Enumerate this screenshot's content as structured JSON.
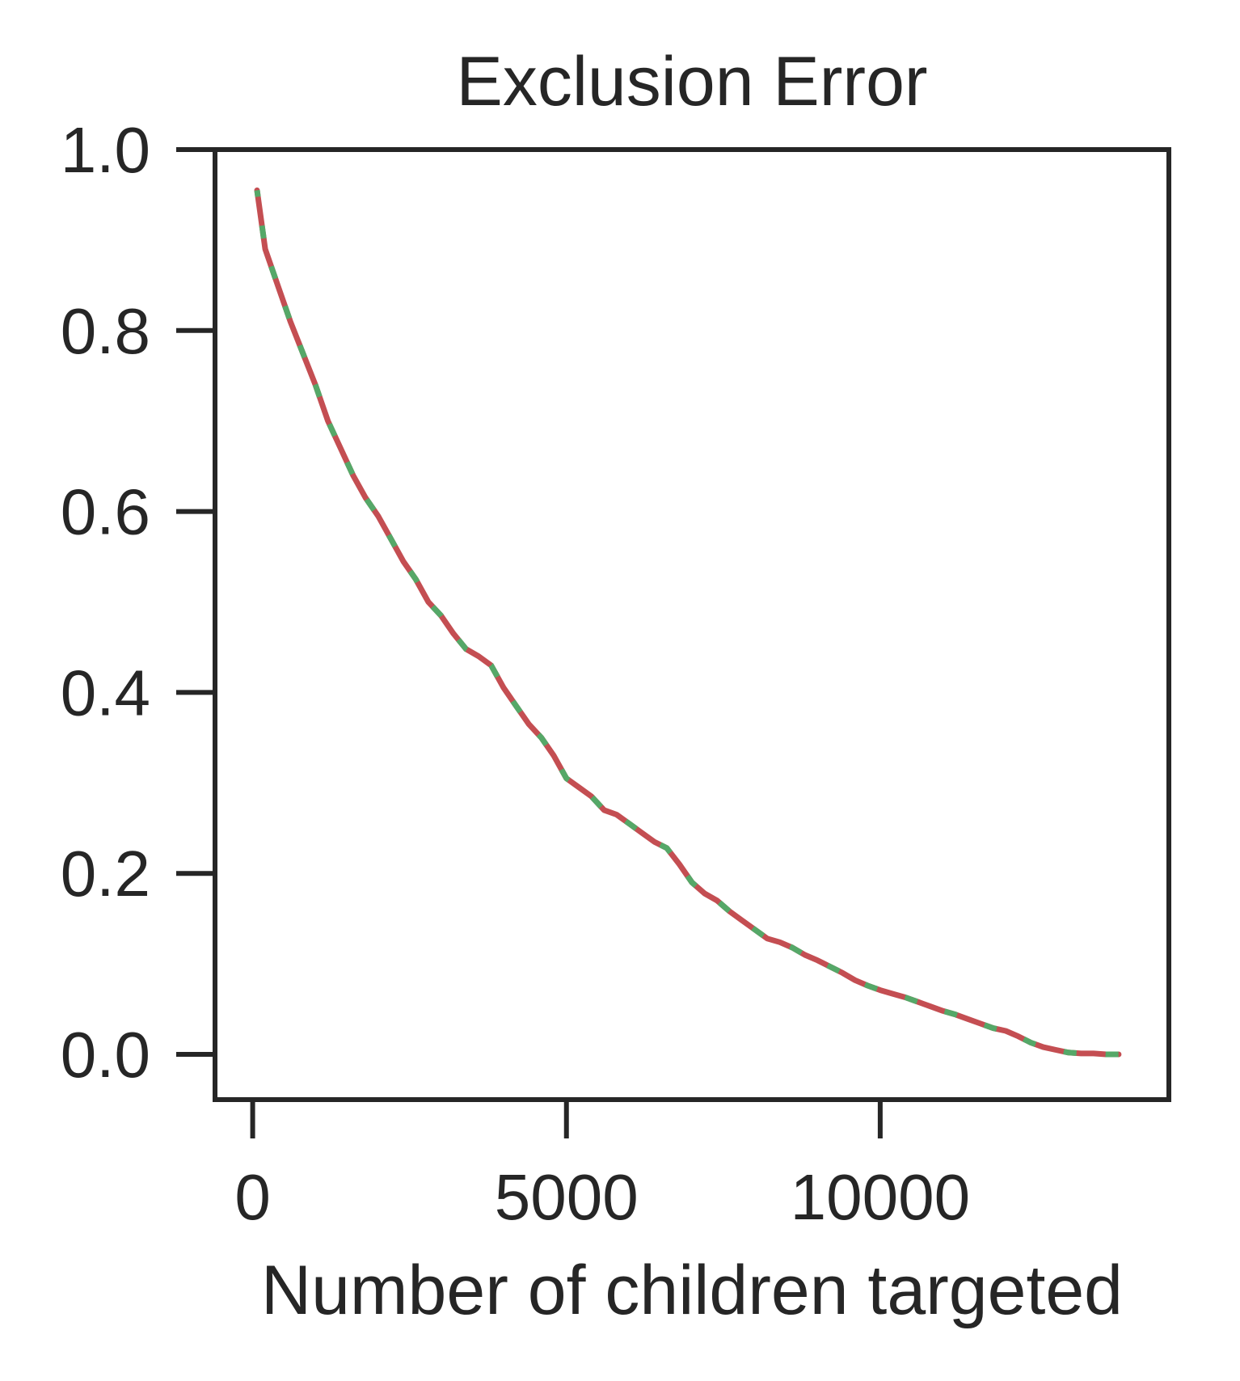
{
  "chart_data": {
    "type": "line",
    "title": "Exclusion Error",
    "xlabel": "Number of children targeted",
    "ylabel": "",
    "xlim": [
      -600,
      14600
    ],
    "ylim": [
      -0.05,
      1.0
    ],
    "xticks": [
      0,
      5000,
      10000
    ],
    "xtick_labels": [
      "0",
      "5000",
      "10000"
    ],
    "yticks": [
      0.0,
      0.2,
      0.4,
      0.6,
      0.8,
      1.0
    ],
    "ytick_labels": [
      "0.0",
      "0.2",
      "0.4",
      "0.6",
      "0.8",
      "1.0"
    ],
    "grid": false,
    "legend": "none",
    "line_style": "dashed",
    "colors": {
      "primary": "#c44e52",
      "secondary": "#55a868",
      "axis": "#262626"
    },
    "series": [
      {
        "x": [
          70,
          200,
          400,
          600,
          800,
          1000,
          1200,
          1400,
          1600,
          1800,
          2000,
          2200,
          2400,
          2600,
          2800,
          3000,
          3200,
          3400,
          3600,
          3800,
          4000,
          4200,
          4400,
          4600,
          4800,
          5000,
          5200,
          5400,
          5600,
          5800,
          6000,
          6200,
          6400,
          6600,
          6800,
          7000,
          7200,
          7400,
          7600,
          7800,
          8000,
          8200,
          8400,
          8600,
          8800,
          9000,
          9200,
          9400,
          9600,
          9800,
          10000,
          10200,
          10400,
          10600,
          10800,
          11000,
          11200,
          11400,
          11600,
          11800,
          12000,
          12200,
          12400,
          12600,
          12800,
          13000,
          13200,
          13400,
          13600,
          13800
        ],
        "y": [
          0.955,
          0.89,
          0.85,
          0.81,
          0.775,
          0.74,
          0.7,
          0.67,
          0.64,
          0.615,
          0.595,
          0.57,
          0.545,
          0.525,
          0.5,
          0.485,
          0.465,
          0.448,
          0.44,
          0.43,
          0.405,
          0.385,
          0.365,
          0.35,
          0.33,
          0.305,
          0.295,
          0.285,
          0.27,
          0.265,
          0.255,
          0.245,
          0.235,
          0.228,
          0.21,
          0.19,
          0.178,
          0.17,
          0.158,
          0.148,
          0.138,
          0.128,
          0.124,
          0.118,
          0.11,
          0.104,
          0.097,
          0.09,
          0.082,
          0.076,
          0.071,
          0.067,
          0.063,
          0.058,
          0.053,
          0.048,
          0.044,
          0.039,
          0.034,
          0.029,
          0.026,
          0.02,
          0.013,
          0.008,
          0.005,
          0.002,
          0.001,
          0.001,
          0.0,
          0.0
        ]
      }
    ]
  }
}
